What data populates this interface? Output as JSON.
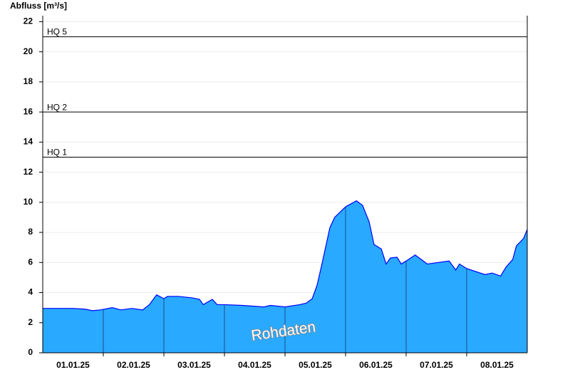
{
  "chart_data": {
    "type": "area",
    "y_label": "Abfluss [m³/s]",
    "annotation": "Rohdaten",
    "x": [
      0,
      0.5,
      0.7,
      0.82,
      0.95,
      1.15,
      1.29,
      1.47,
      1.65,
      1.76,
      1.88,
      2.0,
      2.06,
      2.24,
      2.47,
      2.59,
      2.65,
      2.8,
      2.88,
      3.0,
      3.3,
      3.65,
      3.76,
      4.0,
      4.24,
      4.35,
      4.45,
      4.53,
      4.61,
      4.74,
      4.82,
      5.0,
      5.18,
      5.28,
      5.39,
      5.47,
      5.59,
      5.67,
      5.74,
      5.85,
      5.92,
      6.0,
      6.15,
      6.35,
      6.71,
      6.82,
      6.88,
      7.0,
      7.3,
      7.42,
      7.56,
      7.65,
      7.76,
      7.82,
      7.94,
      8.0
    ],
    "series": [
      {
        "name": "Abfluss",
        "color": "#29a9ff",
        "line_color": "#0000ff",
        "values": [
          2.95,
          2.95,
          2.9,
          2.8,
          2.85,
          3.0,
          2.85,
          2.95,
          2.85,
          3.2,
          3.85,
          3.6,
          3.75,
          3.75,
          3.65,
          3.55,
          3.2,
          3.55,
          3.2,
          3.2,
          3.15,
          3.05,
          3.15,
          3.05,
          3.2,
          3.3,
          3.6,
          4.5,
          5.9,
          8.3,
          9.0,
          9.7,
          10.1,
          9.8,
          8.7,
          7.2,
          6.9,
          5.9,
          6.3,
          6.35,
          5.9,
          6.1,
          6.5,
          5.9,
          6.1,
          5.5,
          5.9,
          5.6,
          5.2,
          5.3,
          5.1,
          5.7,
          6.2,
          7.1,
          7.6,
          8.2
        ]
      }
    ],
    "xlim": [
      0,
      8
    ],
    "xticks": [
      {
        "value": 0.5,
        "label": "01.01.25"
      },
      {
        "value": 1.5,
        "label": "02.01.25"
      },
      {
        "value": 2.5,
        "label": "03.01.25"
      },
      {
        "value": 3.5,
        "label": "04.01.25"
      },
      {
        "value": 4.5,
        "label": "05.01.25"
      },
      {
        "value": 5.5,
        "label": "06.01.25"
      },
      {
        "value": 6.5,
        "label": "07.01.25"
      },
      {
        "value": 7.5,
        "label": "08.01.25"
      }
    ],
    "xgrid": [
      1,
      2,
      3,
      4,
      5,
      6,
      7
    ],
    "ylim": [
      0,
      22.4
    ],
    "yticks": [
      0,
      2,
      4,
      6,
      8,
      10,
      12,
      14,
      16,
      18,
      20,
      22
    ],
    "grid": true,
    "thresholds": [
      {
        "label": "HQ 1",
        "value": 13
      },
      {
        "label": "HQ 2",
        "value": 16
      },
      {
        "label": "HQ 5",
        "value": 21
      }
    ]
  }
}
